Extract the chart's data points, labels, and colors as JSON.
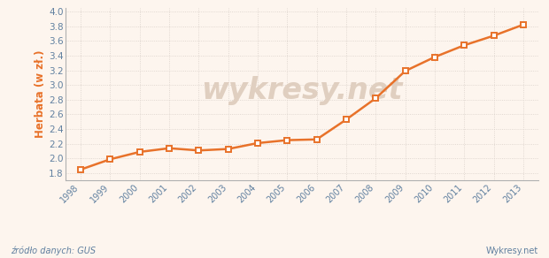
{
  "years": [
    1998,
    1999,
    2000,
    2001,
    2002,
    2003,
    2004,
    2005,
    2006,
    2007,
    2008,
    2009,
    2010,
    2011,
    2012,
    2013
  ],
  "values": [
    1.85,
    1.99,
    2.09,
    2.14,
    2.11,
    2.13,
    2.21,
    2.25,
    2.26,
    2.53,
    2.82,
    3.19,
    3.38,
    3.54,
    3.67,
    3.82
  ],
  "line_color": "#e8722a",
  "marker_facecolor": "#ffffff",
  "marker_edgecolor": "#e8722a",
  "background_color": "#fdf5ee",
  "grid_color": "#d8cfc8",
  "ylabel": "Herbata (w zł.)",
  "ylabel_color": "#e8722a",
  "ylim": [
    1.7,
    4.05
  ],
  "yticks": [
    1.8,
    2.0,
    2.2,
    2.4,
    2.6,
    2.8,
    3.0,
    3.2,
    3.4,
    3.6,
    3.8,
    4.0
  ],
  "source_text": "źródło danych: GUS",
  "watermark_text": "wykresy.net",
  "watermark_color": "#e0cfc0",
  "footer_right_text": "Wykresy.net",
  "tick_color": "#6080a0",
  "axis_color": "#b0b0b0"
}
